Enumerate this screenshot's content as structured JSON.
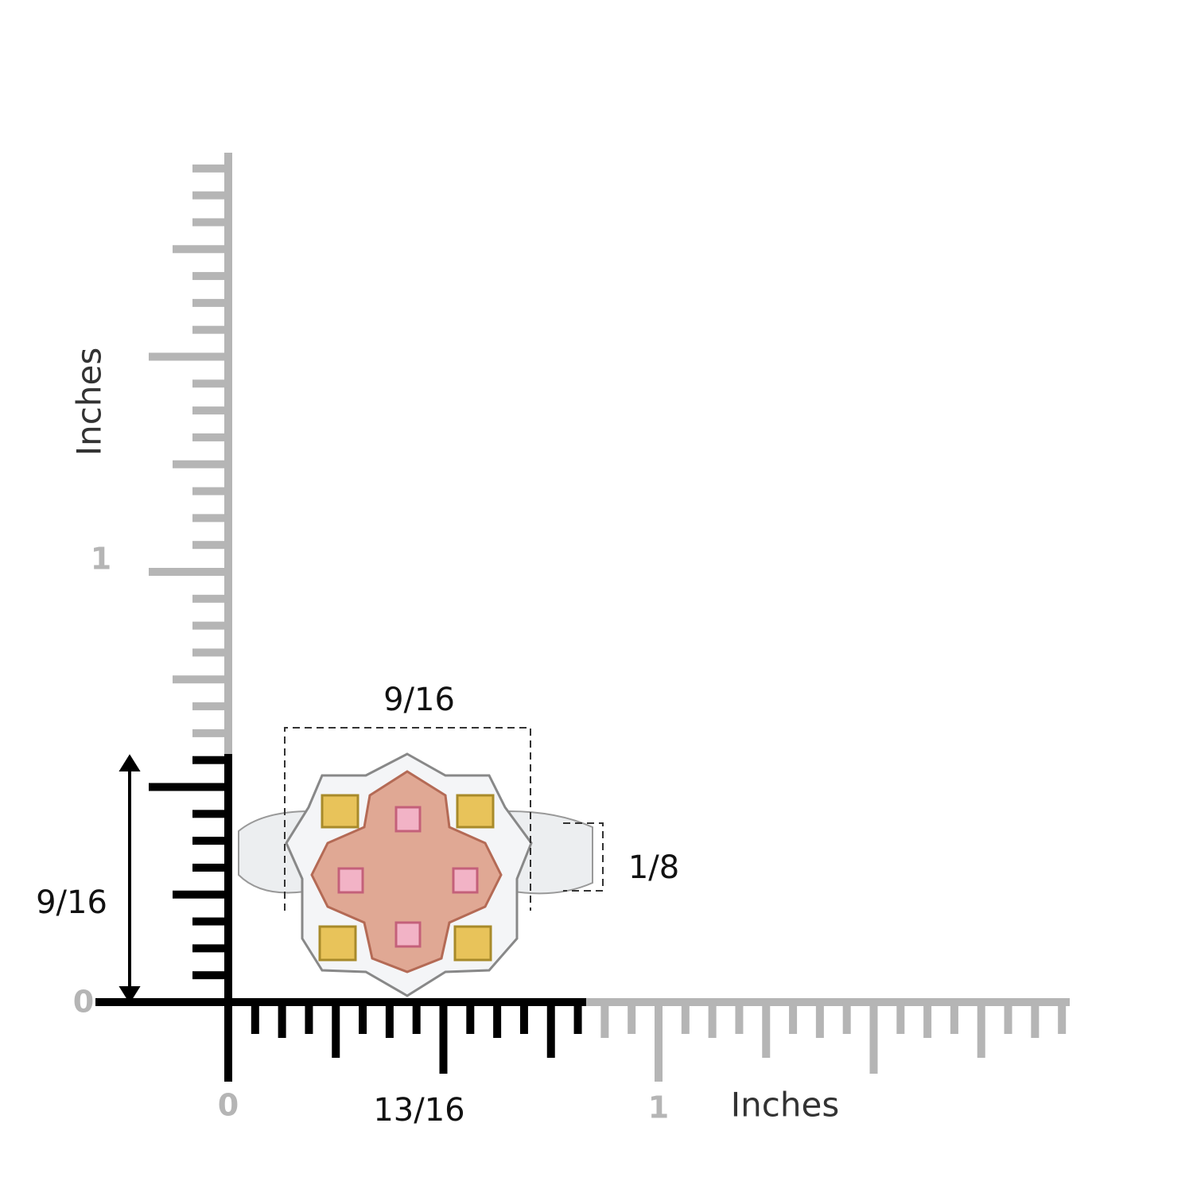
{
  "y_ruler": {
    "unit_label": "Inches",
    "tick_labels": [
      "1",
      "0"
    ]
  },
  "x_ruler": {
    "unit_label": "Inches",
    "tick_labels": [
      "0",
      "1"
    ]
  },
  "dimensions": {
    "height": "9/16",
    "width": "9/16",
    "band_width": "1/8",
    "ring_size_span": "13/16"
  }
}
